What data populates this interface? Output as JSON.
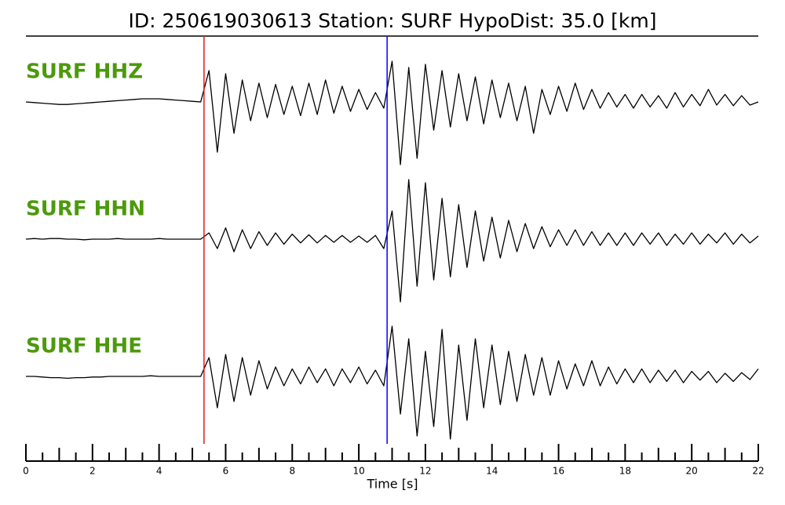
{
  "chart_data": {
    "type": "line",
    "title": "ID: 250619030613   Station: SURF   HypoDist:    35.0 [km]",
    "x_label": "Time [s]",
    "xlim": [
      0,
      22
    ],
    "xticks": [
      0,
      2,
      4,
      6,
      8,
      10,
      12,
      14,
      16,
      18,
      20,
      22
    ],
    "minor_xticks": [
      0.5,
      1,
      1.5,
      2.5,
      3,
      3.5,
      4.5,
      5,
      5.5,
      6.5,
      7,
      7.5,
      8.5,
      9,
      9.5,
      10.5,
      11,
      11.5,
      12.5,
      13,
      13.5,
      14.5,
      15,
      15.5,
      16.5,
      17,
      17.5,
      18.5,
      19,
      19.5,
      20.5,
      21,
      21.5
    ],
    "label_color": "#4c9a0c",
    "picks": [
      {
        "x": 5.35,
        "color": "#e41a1c"
      },
      {
        "x": 10.85,
        "color": "#0000ff"
      }
    ],
    "x": [
      0,
      0.25,
      0.5,
      0.75,
      1,
      1.25,
      1.5,
      1.75,
      2,
      2.25,
      2.5,
      2.75,
      3,
      3.25,
      3.5,
      3.75,
      4,
      4.25,
      4.5,
      4.75,
      5,
      5.25,
      5.5,
      5.75,
      6,
      6.25,
      6.5,
      6.75,
      7,
      7.25,
      7.5,
      7.75,
      8,
      8.25,
      8.5,
      8.75,
      9,
      9.25,
      9.5,
      9.75,
      10,
      10.25,
      10.5,
      10.75,
      11,
      11.25,
      11.5,
      11.75,
      12,
      12.25,
      12.5,
      12.75,
      13,
      13.25,
      13.5,
      13.75,
      14,
      14.25,
      14.5,
      14.75,
      15,
      15.25,
      15.5,
      15.75,
      16,
      16.25,
      16.5,
      16.75,
      17,
      17.25,
      17.5,
      17.75,
      18,
      18.25,
      18.5,
      18.75,
      19,
      19.25,
      19.5,
      19.75,
      20,
      20.25,
      20.5,
      20.75,
      21,
      21.25,
      21.5,
      21.75,
      22
    ],
    "series": [
      {
        "name": "SURF HHZ",
        "color": "#000000",
        "values": [
          0,
          -0.01,
          -0.02,
          -0.03,
          -0.04,
          -0.04,
          -0.03,
          -0.02,
          -0.01,
          0,
          0.01,
          0.02,
          0.03,
          0.04,
          0.05,
          0.05,
          0.05,
          0.04,
          0.03,
          0.02,
          0.01,
          0,
          0.5,
          -0.8,
          0.45,
          -0.5,
          0.35,
          -0.3,
          0.3,
          -0.25,
          0.28,
          -0.2,
          0.25,
          -0.22,
          0.3,
          -0.2,
          0.35,
          -0.18,
          0.25,
          -0.15,
          0.2,
          -0.12,
          0.15,
          -0.1,
          0.65,
          -1.0,
          0.55,
          -0.9,
          0.6,
          -0.45,
          0.5,
          -0.4,
          0.45,
          -0.3,
          0.4,
          -0.35,
          0.35,
          -0.25,
          0.3,
          -0.3,
          0.25,
          -0.5,
          0.2,
          -0.2,
          0.25,
          -0.15,
          0.3,
          -0.12,
          0.2,
          -0.1,
          0.15,
          -0.08,
          0.12,
          -0.1,
          0.12,
          -0.08,
          0.1,
          -0.1,
          0.15,
          -0.08,
          0.12,
          -0.06,
          0.2,
          -0.05,
          0.12,
          -0.06,
          0.1,
          -0.05,
          0.0
        ]
      },
      {
        "name": "SURF HHN",
        "color": "#000000",
        "values": [
          0,
          0.01,
          0,
          0.01,
          0.01,
          0,
          0,
          -0.01,
          0,
          0,
          0,
          0.01,
          0,
          0,
          0,
          0,
          0.01,
          0,
          0,
          0,
          0,
          0,
          0.1,
          -0.15,
          0.18,
          -0.2,
          0.15,
          -0.15,
          0.12,
          -0.1,
          0.1,
          -0.08,
          0.08,
          -0.06,
          0.07,
          -0.06,
          0.06,
          -0.05,
          0.06,
          -0.05,
          0.05,
          -0.05,
          0.06,
          -0.15,
          0.45,
          -1.0,
          0.95,
          -0.75,
          0.9,
          -0.65,
          0.65,
          -0.6,
          0.55,
          -0.45,
          0.45,
          -0.35,
          0.35,
          -0.3,
          0.3,
          -0.2,
          0.25,
          -0.15,
          0.2,
          -0.12,
          0.15,
          -0.1,
          0.15,
          -0.1,
          0.12,
          -0.1,
          0.1,
          -0.1,
          0.1,
          -0.1,
          0.1,
          -0.08,
          0.1,
          -0.1,
          0.08,
          -0.08,
          0.1,
          -0.08,
          0.08,
          -0.06,
          0.1,
          -0.08,
          0.08,
          -0.06,
          0.05
        ]
      },
      {
        "name": "SURF HHE",
        "color": "#000000",
        "values": [
          0,
          0,
          -0.01,
          -0.02,
          -0.02,
          -0.03,
          -0.02,
          -0.02,
          -0.01,
          -0.01,
          0,
          0,
          0,
          0,
          0,
          0.01,
          0,
          0,
          0,
          0,
          0,
          0,
          0.3,
          -0.5,
          0.35,
          -0.4,
          0.3,
          -0.3,
          0.25,
          -0.2,
          0.15,
          -0.15,
          0.12,
          -0.12,
          0.15,
          -0.1,
          0.12,
          -0.15,
          0.12,
          -0.1,
          0.15,
          -0.12,
          0.1,
          -0.15,
          0.8,
          -0.6,
          0.6,
          -0.95,
          0.4,
          -0.8,
          0.75,
          -1.0,
          0.5,
          -0.7,
          0.6,
          -0.5,
          0.5,
          -0.45,
          0.4,
          -0.4,
          0.35,
          -0.3,
          0.3,
          -0.3,
          0.25,
          -0.2,
          0.2,
          -0.15,
          0.25,
          -0.15,
          0.15,
          -0.12,
          0.12,
          -0.1,
          0.12,
          -0.1,
          0.1,
          -0.08,
          0.1,
          -0.1,
          0.08,
          -0.06,
          0.08,
          -0.1,
          0.05,
          -0.08,
          0.06,
          -0.05,
          0.12
        ]
      }
    ]
  }
}
